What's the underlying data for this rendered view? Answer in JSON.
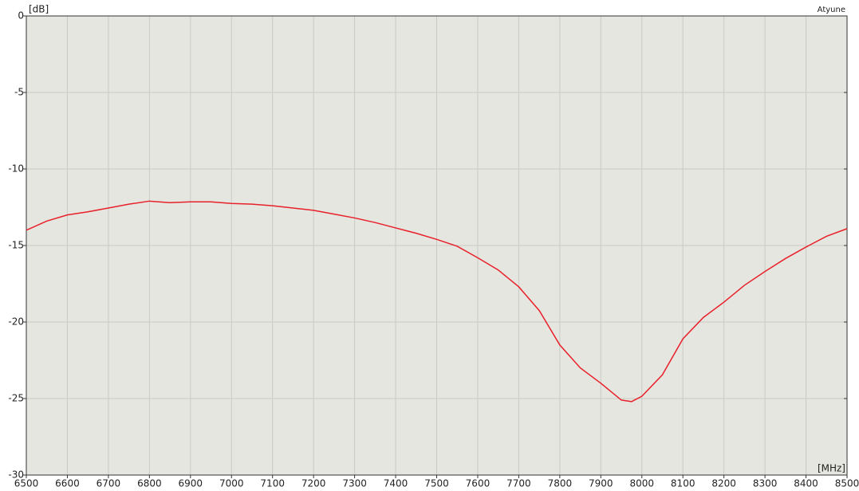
{
  "chart_data": {
    "type": "line",
    "y_label": "[dB]",
    "x_label": "[MHz]",
    "x": [
      6500,
      6550,
      6600,
      6650,
      6700,
      6750,
      6800,
      6850,
      6900,
      6950,
      7000,
      7050,
      7100,
      7150,
      7200,
      7250,
      7300,
      7350,
      7400,
      7450,
      7500,
      7550,
      7600,
      7650,
      7700,
      7750,
      7800,
      7850,
      7900,
      7950,
      7975,
      8000,
      8050,
      8100,
      8150,
      8200,
      8250,
      8300,
      8350,
      8400,
      8450,
      8500
    ],
    "series": [
      {
        "name": "Atyune",
        "color": "#e8202a",
        "values": [
          -14.0,
          -13.4,
          -13.0,
          -12.8,
          -12.55,
          -12.3,
          -12.1,
          -12.2,
          -12.15,
          -12.15,
          -12.25,
          -12.3,
          -12.4,
          -12.55,
          -12.7,
          -12.95,
          -13.2,
          -13.5,
          -13.85,
          -14.2,
          -14.6,
          -15.05,
          -15.8,
          -16.6,
          -17.7,
          -19.25,
          -21.5,
          -23.0,
          -24.0,
          -25.1,
          -25.2,
          -24.85,
          -23.45,
          -21.1,
          -19.7,
          -18.7,
          -17.6,
          -16.7,
          -15.85,
          -15.1,
          -14.4,
          -13.9
        ]
      }
    ],
    "xlim": [
      6500,
      8500
    ],
    "xticks": [
      6500,
      6600,
      6700,
      6800,
      6900,
      7000,
      7100,
      7200,
      7300,
      7400,
      7500,
      7600,
      7700,
      7800,
      7900,
      8000,
      8100,
      8200,
      8300,
      8400,
      8500
    ],
    "ylim": [
      -30,
      0
    ],
    "yticks": [
      0,
      -5,
      -10,
      -15,
      -20,
      -25,
      -30
    ],
    "grid": true
  }
}
